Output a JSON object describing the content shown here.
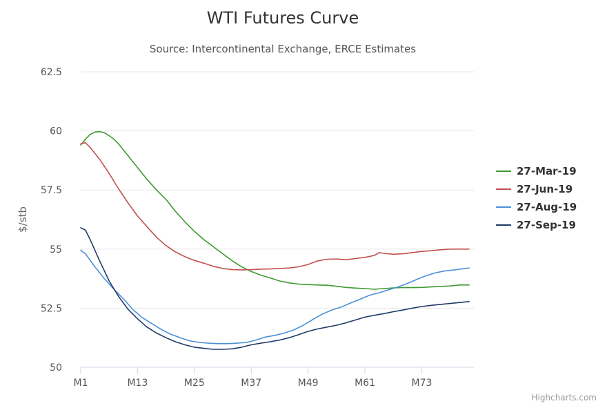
{
  "chart_data": {
    "type": "line",
    "title": "WTI Futures Curve",
    "subtitle": "Source: Intercontinental Exchange, ERCE Estimates",
    "ylabel": "$/stb",
    "ylim": [
      50,
      62.5
    ],
    "yticks": [
      50,
      52.5,
      55,
      57.5,
      60,
      62.5
    ],
    "ytick_labels": [
      "50",
      "52.5",
      "55",
      "57.5",
      "60",
      "62.5"
    ],
    "xlim": [
      1,
      84
    ],
    "xticks": [
      1,
      13,
      25,
      37,
      49,
      61,
      73
    ],
    "xtick_labels": [
      "M1",
      "M13",
      "M25",
      "M37",
      "M49",
      "M61",
      "M73"
    ],
    "grid": true,
    "legend_position": "right",
    "series": [
      {
        "name": "27-Mar-19",
        "color": "#3c9a2e",
        "points": [
          [
            1,
            59.4
          ],
          [
            2,
            59.65
          ],
          [
            3,
            59.85
          ],
          [
            4,
            59.95
          ],
          [
            5,
            59.97
          ],
          [
            6,
            59.92
          ],
          [
            7,
            59.8
          ],
          [
            8,
            59.65
          ],
          [
            9,
            59.45
          ],
          [
            10,
            59.2
          ],
          [
            11,
            58.95
          ],
          [
            13,
            58.45
          ],
          [
            15,
            57.95
          ],
          [
            17,
            57.5
          ],
          [
            19,
            57.1
          ],
          [
            21,
            56.6
          ],
          [
            23,
            56.15
          ],
          [
            25,
            55.75
          ],
          [
            27,
            55.4
          ],
          [
            29,
            55.1
          ],
          [
            31,
            54.8
          ],
          [
            33,
            54.5
          ],
          [
            35,
            54.25
          ],
          [
            37,
            54.05
          ],
          [
            39,
            53.9
          ],
          [
            41,
            53.78
          ],
          [
            43,
            53.65
          ],
          [
            45,
            53.57
          ],
          [
            47,
            53.52
          ],
          [
            49,
            53.5
          ],
          [
            51,
            53.48
          ],
          [
            53,
            53.47
          ],
          [
            55,
            53.43
          ],
          [
            57,
            53.38
          ],
          [
            59,
            53.35
          ],
          [
            61,
            53.33
          ],
          [
            63,
            53.3
          ],
          [
            65,
            53.33
          ],
          [
            67,
            53.36
          ],
          [
            69,
            53.37
          ],
          [
            71,
            53.37
          ],
          [
            73,
            53.38
          ],
          [
            75,
            53.4
          ],
          [
            77,
            53.42
          ],
          [
            79,
            53.44
          ],
          [
            81,
            53.48
          ],
          [
            83,
            53.48
          ]
        ]
      },
      {
        "name": "27-Jun-19",
        "color": "#c0504d",
        "points": [
          [
            1,
            59.45
          ],
          [
            2,
            59.5
          ],
          [
            3,
            59.3
          ],
          [
            5,
            58.8
          ],
          [
            7,
            58.2
          ],
          [
            9,
            57.55
          ],
          [
            11,
            56.95
          ],
          [
            13,
            56.4
          ],
          [
            15,
            55.95
          ],
          [
            17,
            55.5
          ],
          [
            19,
            55.15
          ],
          [
            21,
            54.88
          ],
          [
            23,
            54.68
          ],
          [
            25,
            54.52
          ],
          [
            27,
            54.4
          ],
          [
            29,
            54.27
          ],
          [
            31,
            54.18
          ],
          [
            33,
            54.13
          ],
          [
            35,
            54.12
          ],
          [
            37,
            54.13
          ],
          [
            39,
            54.15
          ],
          [
            41,
            54.16
          ],
          [
            43,
            54.18
          ],
          [
            45,
            54.2
          ],
          [
            47,
            54.25
          ],
          [
            49,
            54.35
          ],
          [
            51,
            54.5
          ],
          [
            53,
            54.57
          ],
          [
            55,
            54.58
          ],
          [
            57,
            54.55
          ],
          [
            59,
            54.6
          ],
          [
            61,
            54.65
          ],
          [
            63,
            54.73
          ],
          [
            64,
            54.85
          ],
          [
            65,
            54.82
          ],
          [
            67,
            54.78
          ],
          [
            69,
            54.8
          ],
          [
            71,
            54.85
          ],
          [
            73,
            54.9
          ],
          [
            75,
            54.93
          ],
          [
            77,
            54.97
          ],
          [
            79,
            55.0
          ],
          [
            81,
            55.0
          ],
          [
            83,
            55.0
          ]
        ]
      },
      {
        "name": "27-Aug-19",
        "color": "#4a90d9",
        "points": [
          [
            1,
            54.95
          ],
          [
            2,
            54.8
          ],
          [
            4,
            54.25
          ],
          [
            6,
            53.75
          ],
          [
            8,
            53.3
          ],
          [
            10,
            52.9
          ],
          [
            12,
            52.45
          ],
          [
            14,
            52.1
          ],
          [
            16,
            51.85
          ],
          [
            18,
            51.6
          ],
          [
            20,
            51.4
          ],
          [
            22,
            51.25
          ],
          [
            24,
            51.12
          ],
          [
            26,
            51.05
          ],
          [
            28,
            51.02
          ],
          [
            30,
            51.0
          ],
          [
            32,
            51.0
          ],
          [
            34,
            51.02
          ],
          [
            36,
            51.05
          ],
          [
            38,
            51.15
          ],
          [
            40,
            51.28
          ],
          [
            42,
            51.35
          ],
          [
            44,
            51.45
          ],
          [
            46,
            51.58
          ],
          [
            48,
            51.78
          ],
          [
            50,
            52.02
          ],
          [
            52,
            52.25
          ],
          [
            54,
            52.42
          ],
          [
            56,
            52.55
          ],
          [
            58,
            52.72
          ],
          [
            60,
            52.88
          ],
          [
            62,
            53.05
          ],
          [
            64,
            53.15
          ],
          [
            66,
            53.28
          ],
          [
            68,
            53.4
          ],
          [
            70,
            53.55
          ],
          [
            72,
            53.72
          ],
          [
            74,
            53.88
          ],
          [
            76,
            54.0
          ],
          [
            78,
            54.08
          ],
          [
            80,
            54.12
          ],
          [
            82,
            54.18
          ],
          [
            83,
            54.2
          ]
        ]
      },
      {
        "name": "27-Sep-19",
        "color": "#1f3a68",
        "points": [
          [
            1,
            55.9
          ],
          [
            2,
            55.8
          ],
          [
            3,
            55.4
          ],
          [
            5,
            54.5
          ],
          [
            7,
            53.65
          ],
          [
            9,
            53.0
          ],
          [
            11,
            52.45
          ],
          [
            13,
            52.05
          ],
          [
            15,
            51.7
          ],
          [
            17,
            51.45
          ],
          [
            19,
            51.25
          ],
          [
            21,
            51.08
          ],
          [
            23,
            50.95
          ],
          [
            25,
            50.85
          ],
          [
            27,
            50.8
          ],
          [
            29,
            50.76
          ],
          [
            31,
            50.76
          ],
          [
            33,
            50.78
          ],
          [
            35,
            50.85
          ],
          [
            37,
            50.95
          ],
          [
            39,
            51.02
          ],
          [
            41,
            51.08
          ],
          [
            43,
            51.15
          ],
          [
            45,
            51.25
          ],
          [
            47,
            51.38
          ],
          [
            49,
            51.52
          ],
          [
            51,
            51.62
          ],
          [
            53,
            51.7
          ],
          [
            55,
            51.78
          ],
          [
            57,
            51.88
          ],
          [
            59,
            52.0
          ],
          [
            61,
            52.12
          ],
          [
            63,
            52.2
          ],
          [
            65,
            52.27
          ],
          [
            67,
            52.35
          ],
          [
            69,
            52.42
          ],
          [
            71,
            52.5
          ],
          [
            73,
            52.57
          ],
          [
            75,
            52.62
          ],
          [
            77,
            52.66
          ],
          [
            79,
            52.7
          ],
          [
            81,
            52.74
          ],
          [
            83,
            52.78
          ]
        ]
      }
    ],
    "credits": "Highcharts.com"
  }
}
